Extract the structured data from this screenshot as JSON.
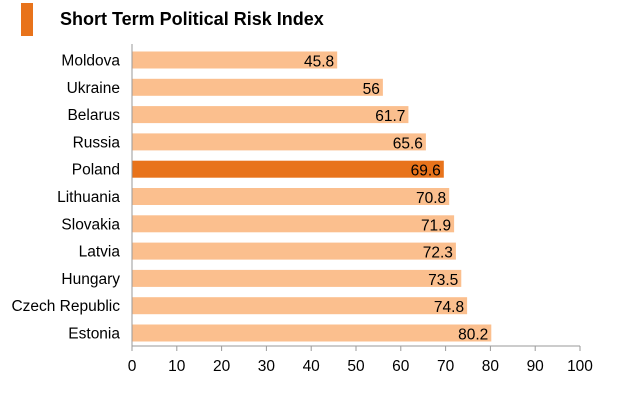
{
  "title": "Short Term Political Risk Index",
  "colors": {
    "accent": "#e8731b",
    "bar": "#fbbf8e",
    "highlight": "#e8731b",
    "axis": "#9a9a9a"
  },
  "chart_data": {
    "type": "bar",
    "orientation": "horizontal",
    "title": "Short Term Political Risk Index",
    "categories": [
      "Moldova",
      "Ukraine",
      "Belarus",
      "Russia",
      "Poland",
      "Lithuania",
      "Slovakia",
      "Latvia",
      "Hungary",
      "Czech Republic",
      "Estonia"
    ],
    "values": [
      45.8,
      56,
      61.7,
      65.6,
      69.6,
      70.8,
      71.9,
      72.3,
      73.5,
      74.8,
      80.2
    ],
    "value_labels": [
      "45.8",
      "56",
      "61.7",
      "65.6",
      "69.6",
      "70.8",
      "71.9",
      "72.3",
      "73.5",
      "74.8",
      "80.2"
    ],
    "highlight": "Poland",
    "xlim": [
      0,
      100
    ],
    "xticks": [
      "0",
      "10",
      "20",
      "30",
      "40",
      "50",
      "60",
      "70",
      "80",
      "90",
      "100"
    ],
    "grid": false,
    "legend": "none"
  }
}
